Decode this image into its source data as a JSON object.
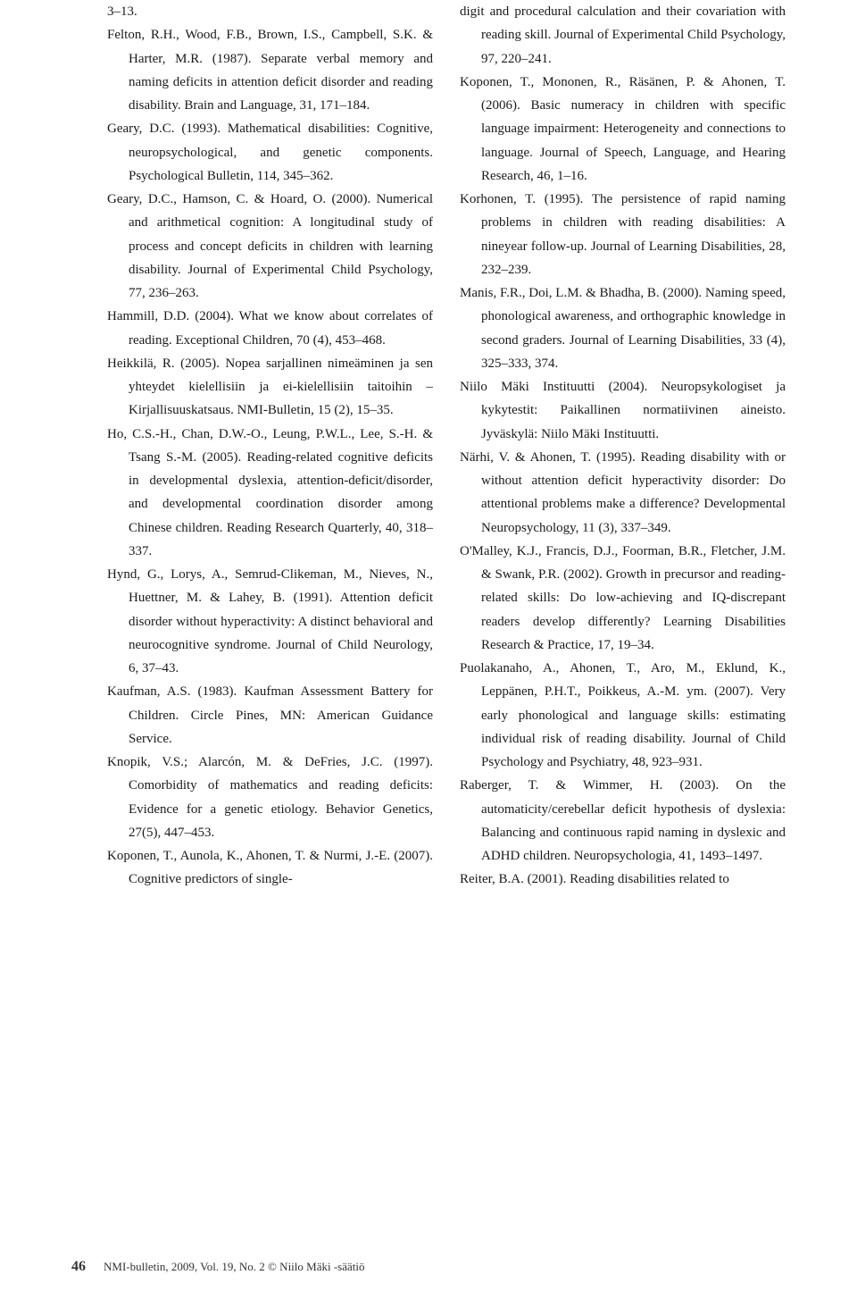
{
  "references_col1": [
    "3–13.",
    "Felton, R.H., Wood, F.B., Brown, I.S., Campbell, S.K. & Harter, M.R. (1987). Separate verbal memory and naming deficits in attention deficit disorder and reading disability. Brain and Language, 31, 171–184.",
    "Geary, D.C. (1993). Mathematical disabilities: Cognitive, neuropsychological, and genetic components. Psychological Bulletin, 114, 345–362.",
    "Geary, D.C., Hamson, C. & Hoard, O. (2000). Numerical and arithmetical cognition: A longitudinal study of process and concept deficits in children with learning disability. Journal of Experimental Child Psychology, 77, 236–263.",
    "Hammill, D.D. (2004). What we know about correlates of reading. Exceptional Children, 70 (4), 453–468.",
    "Heikkilä, R. (2005). Nopea sarjallinen nimeäminen ja sen yhteydet kielellisiin ja ei-kielellisiin taitoihin – Kirjallisuuskatsaus. NMI-Bulletin, 15 (2), 15–35.",
    "Ho, C.S.-H., Chan, D.W.-O., Leung, P.W.L., Lee, S.-H. & Tsang S.-M. (2005). Reading-related cognitive deficits in developmental dyslexia, attention-deficit/disorder, and developmental coordination disorder among Chinese children. Reading Research Quarterly, 40, 318–337.",
    "Hynd, G., Lorys, A., Semrud-Clikeman, M., Nieves, N., Huettner, M. & Lahey, B. (1991). Attention deficit disorder without hyperactivity: A distinct behavioral and neurocognitive syndrome. Journal of Child Neurology, 6, 37–43.",
    "Kaufman, A.S. (1983). Kaufman Assessment Battery for Children. Circle Pines, MN: American Guidance Service.",
    "Knopik, V.S.; Alarcón, M. & DeFries, J.C. (1997). Comorbidity of mathematics and reading deficits: Evidence for a genetic etiology. Behavior Genetics, 27(5), 447–453.",
    "Koponen, T., Aunola, K., Ahonen, T. & Nurmi, J.-E. (2007). Cognitive predictors of single-"
  ],
  "references_col2": [
    "digit and procedural calculation and their covariation with reading skill. Journal of Experimental Child Psychology, 97, 220–241.",
    "Koponen, T., Mononen, R., Räsänen, P. & Ahonen, T. (2006). Basic numeracy in children with specific language impairment: Heterogeneity and connections to language. Journal of Speech, Language, and Hearing Research, 46, 1–16.",
    "Korhonen, T. (1995). The persistence of rapid naming problems in children with reading disabilities: A nineyear follow-up. Journal of Learning Disabilities, 28, 232–239.",
    "Manis, F.R., Doi, L.M. & Bhadha, B. (2000). Naming speed, phonological awareness, and orthographic knowledge in second graders. Journal of Learning Disabilities, 33 (4), 325–333, 374.",
    "Niilo Mäki Instituutti (2004). Neuropsykologiset ja kykytestit: Paikallinen normatiivinen aineisto. Jyväskylä: Niilo Mäki Instituutti.",
    "Närhi, V. & Ahonen, T. (1995). Reading disability with or without attention deficit hyperactivity disorder: Do attentional problems make a difference? Developmental Neuropsychology, 11 (3), 337–349.",
    "O'Malley, K.J., Francis, D.J., Foorman, B.R., Fletcher, J.M. & Swank, P.R. (2002). Growth in precursor and reading-related skills: Do low-achieving and IQ-discrepant readers develop differently? Learning Disabilities Research & Practice, 17, 19–34.",
    "Puolakanaho, A., Ahonen, T., Aro, M., Eklund, K., Leppänen, P.H.T., Poikkeus, A.-M. ym. (2007). Very early phonological and language skills: estimating individual risk of reading disability. Journal of Child Psychology and Psychiatry, 48, 923–931.",
    "Raberger, T. & Wimmer, H. (2003). On the automaticity/cerebellar deficit hypothesis of dyslexia: Balancing and continuous rapid naming in dyslexic and ADHD children. Neuropsychologia, 41, 1493–1497.",
    "Reiter, B.A. (2001). Reading disabilities related to"
  ],
  "footer": {
    "page_number": "46",
    "citation": "NMI-bulletin, 2009, Vol. 19, No. 2 © Niilo Mäki -säätiö"
  }
}
